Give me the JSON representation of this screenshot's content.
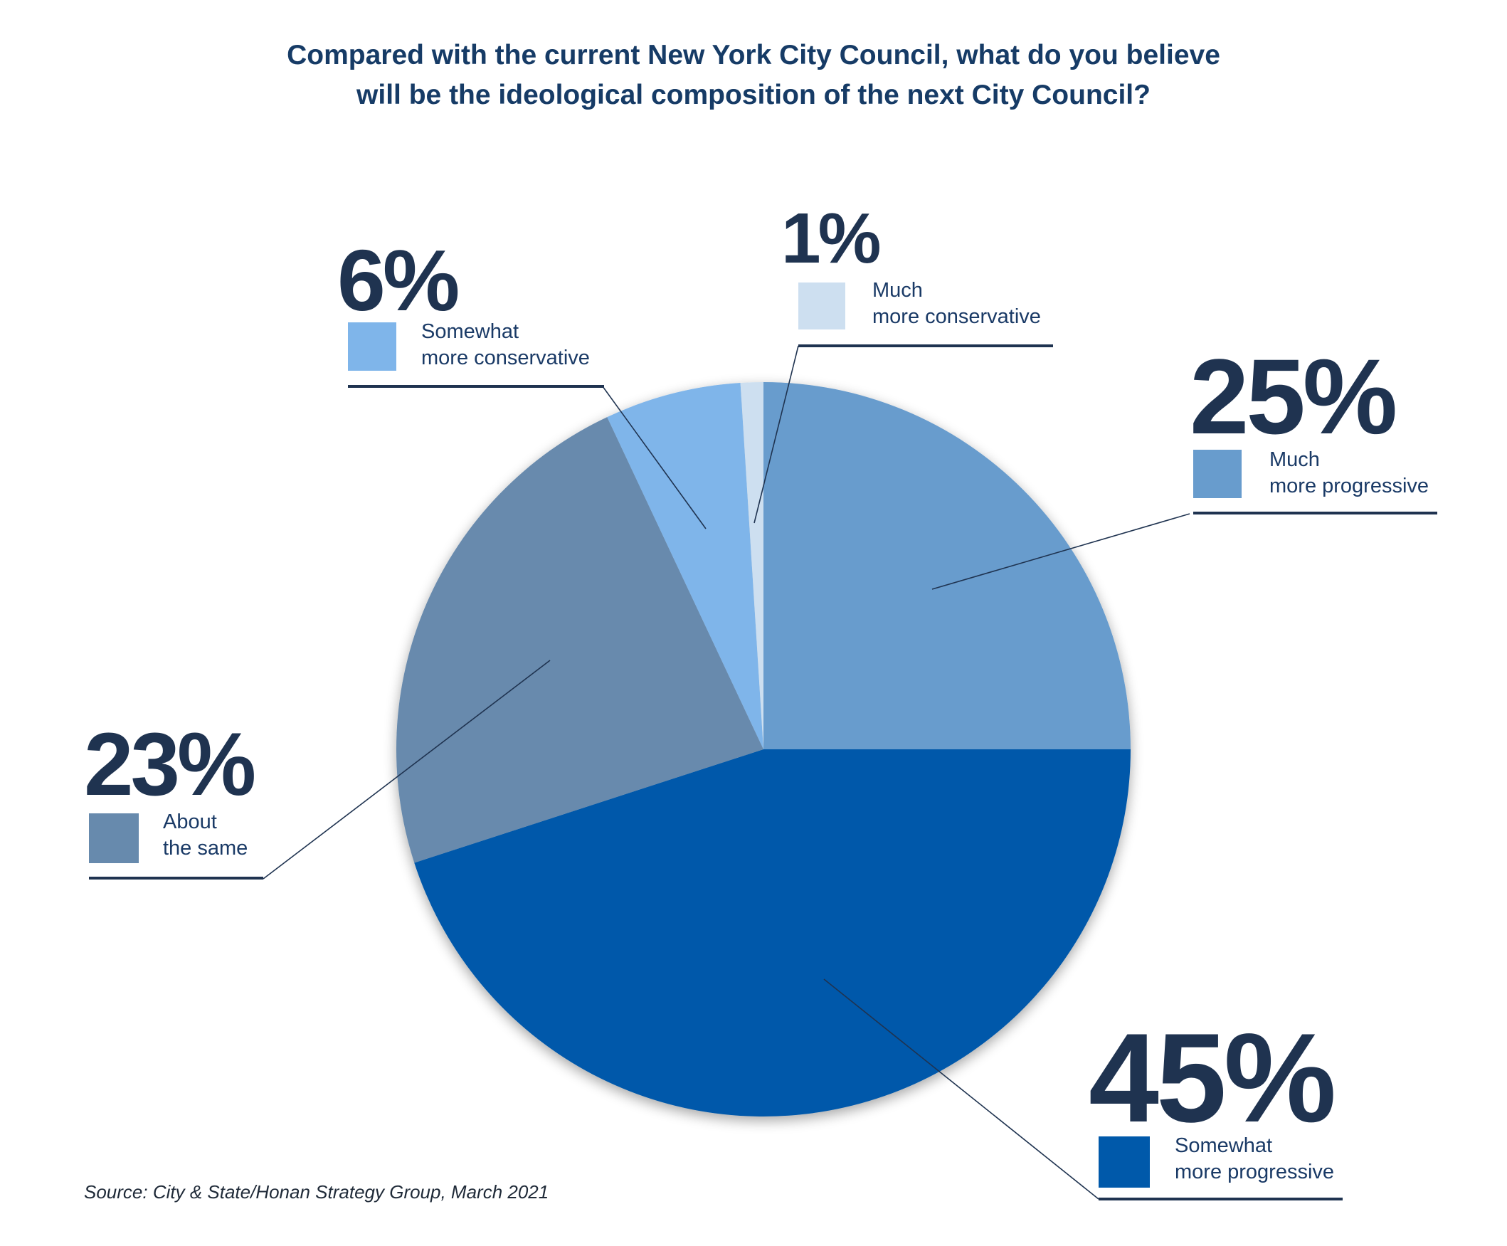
{
  "title_lines": [
    "Compared with the current New York City Council, what do you believe",
    "will be the ideological composition of the next City Council?"
  ],
  "source": "Source: City & State/Honan Strategy Group, March 2021",
  "colors": {
    "much_more_progressive": "#689ccd",
    "somewhat_more_progressive": "#0059aa",
    "about_the_same": "#678aad",
    "somewhat_more_conservative": "#7fb5ea",
    "much_more_conservative": "#cddff0",
    "text_dark": "#1f3350",
    "title": "#163b66"
  },
  "chart_data": {
    "type": "pie",
    "title": "Compared with the current New York City Council, what do you believe will be the ideological composition of the next City Council?",
    "start": "12 o'clock, clockwise",
    "slices": [
      {
        "key": "much_more_progressive",
        "label_lines": [
          "Much",
          "more progressive"
        ],
        "value": 25,
        "display": "25%"
      },
      {
        "key": "somewhat_more_progressive",
        "label_lines": [
          "Somewhat",
          "more progressive"
        ],
        "value": 45,
        "display": "45%"
      },
      {
        "key": "about_the_same",
        "label_lines": [
          "About",
          "the same"
        ],
        "value": 23,
        "display": "23%"
      },
      {
        "key": "somewhat_more_conservative",
        "label_lines": [
          "Somewhat",
          "more conservative"
        ],
        "value": 6,
        "display": "6%"
      },
      {
        "key": "much_more_conservative",
        "label_lines": [
          "Much",
          "more conservative"
        ],
        "value": 1,
        "display": "1%"
      }
    ]
  }
}
